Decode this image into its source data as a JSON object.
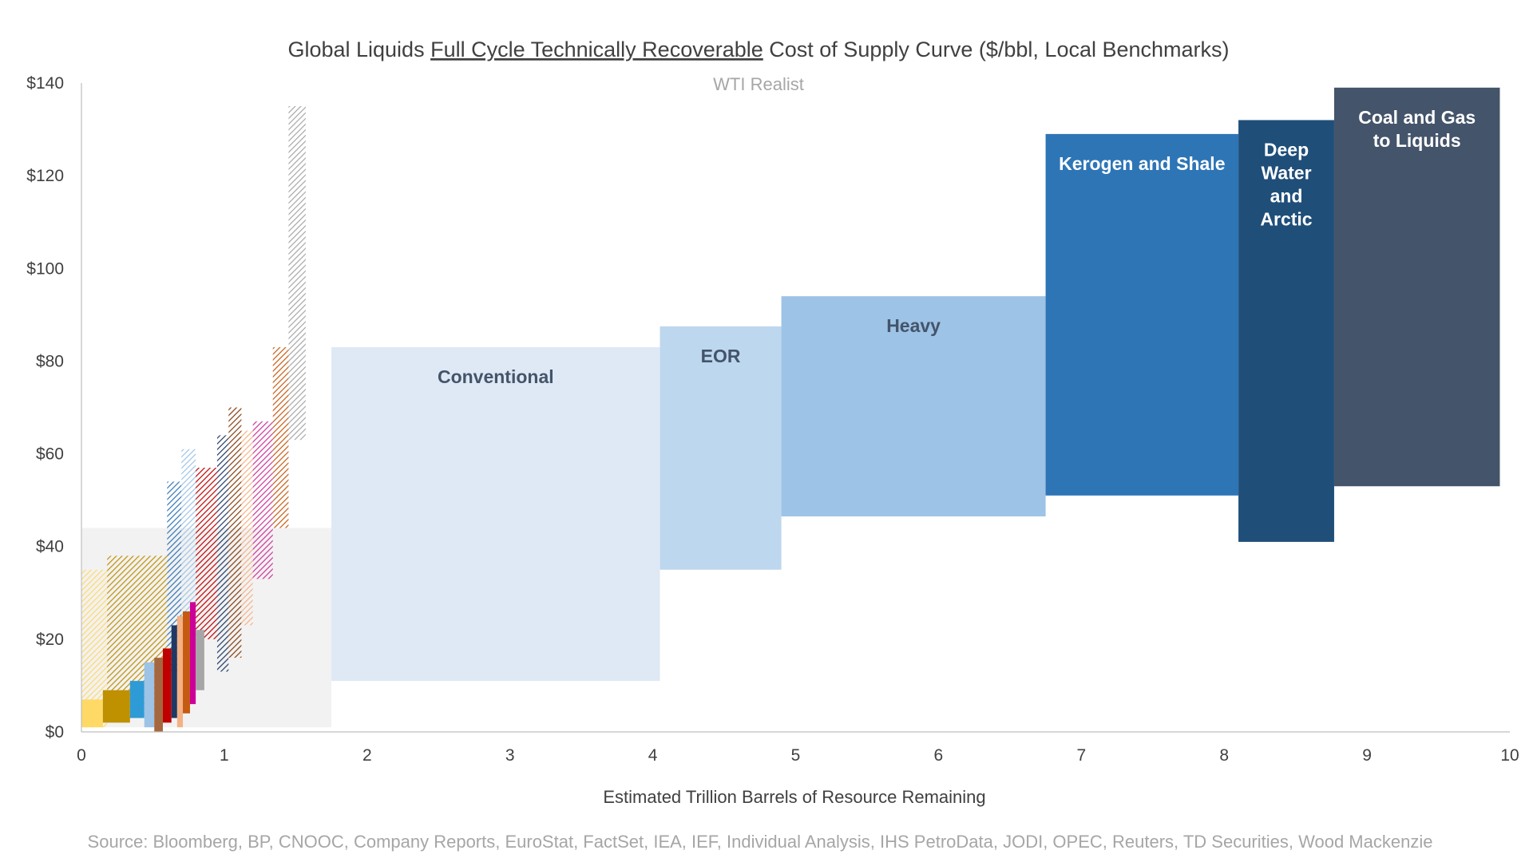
{
  "chart_data": {
    "type": "bar",
    "title_parts": [
      "Global Liquids ",
      "Full Cycle Technically Recoverable",
      " Cost of Supply Curve ($/bbl, Local Benchmarks)"
    ],
    "subtitle": "WTI Realist",
    "xlabel": "Estimated Trillion Barrels of Resource Remaining",
    "ylabel": "",
    "xlim": [
      0,
      10
    ],
    "ylim": [
      0,
      140
    ],
    "x_ticks": [
      "0",
      "1",
      "2",
      "3",
      "4",
      "5",
      "6",
      "7",
      "8",
      "9",
      "10"
    ],
    "y_ticks": [
      "$0",
      "$20",
      "$40",
      "$60",
      "$80",
      "$100",
      "$120",
      "$140"
    ],
    "source": "Source: Bloomberg, BP, CNOOC, Company Reports, EuroStat, FactSet, IEA, IEF, Individual Analysis, IHS PetroData, JODI, OPEC, Reuters, TD Securities, Wood Mackenzie",
    "background_band": {
      "x0": 0,
      "x1": 1.75,
      "low": 1,
      "high": 44,
      "color": "#f2f2f2"
    },
    "segments": [
      {
        "label": "Conventional",
        "x0": 1.75,
        "x1": 4.05,
        "low": 11,
        "high": 83,
        "color": "#dfe9f5",
        "text_color": "#44546a"
      },
      {
        "label": "EOR",
        "x0": 4.05,
        "x1": 4.9,
        "low": 35,
        "high": 87.5,
        "color": "#bdd7ee",
        "text_color": "#44546a"
      },
      {
        "label": "Heavy",
        "x0": 4.9,
        "x1": 6.75,
        "low": 46.5,
        "high": 94,
        "color": "#9dc3e6",
        "text_color": "#44546a"
      },
      {
        "label": "Kerogen and Shale",
        "x0": 6.75,
        "x1": 8.1,
        "low": 51,
        "high": 129,
        "color": "#2e75b6",
        "text_color": "#ffffff"
      },
      {
        "label": "Deep Water and Arctic",
        "x0": 8.1,
        "x1": 8.77,
        "low": 41,
        "high": 132,
        "color": "#1f4e79",
        "text_color": "#ffffff"
      },
      {
        "label": "Coal and Gas to Liquids",
        "x0": 8.77,
        "x1": 9.93,
        "low": 53,
        "high": 139,
        "color": "#44546a",
        "text_color": "#ffffff"
      }
    ],
    "hatched_bars": [
      {
        "x0": 0.0,
        "x1": 0.18,
        "low": 1,
        "high": 35,
        "color": "#ffd966"
      },
      {
        "x0": 0.18,
        "x1": 0.6,
        "low": 3,
        "high": 38,
        "color": "#bf9000"
      },
      {
        "x0": 0.6,
        "x1": 0.7,
        "low": 13,
        "high": 54,
        "color": "#2e75b6"
      },
      {
        "x0": 0.7,
        "x1": 0.8,
        "low": 17,
        "high": 61,
        "color": "#9dc3e6"
      },
      {
        "x0": 0.8,
        "x1": 0.95,
        "low": 20,
        "high": 57,
        "color": "#c00000"
      },
      {
        "x0": 0.95,
        "x1": 1.03,
        "low": 13,
        "high": 64,
        "color": "#1f3864"
      },
      {
        "x0": 1.03,
        "x1": 1.12,
        "low": 16,
        "high": 70,
        "color": "#843c0c"
      },
      {
        "x0": 1.12,
        "x1": 1.2,
        "low": 23,
        "high": 65,
        "color": "#f4b183"
      },
      {
        "x0": 1.2,
        "x1": 1.34,
        "low": 33,
        "high": 67,
        "color": "#cc3399"
      },
      {
        "x0": 1.34,
        "x1": 1.45,
        "low": 44,
        "high": 83,
        "color": "#c55a11"
      },
      {
        "x0": 1.45,
        "x1": 1.57,
        "low": 63,
        "high": 135,
        "color": "#a6a6a6"
      }
    ],
    "solid_bars": [
      {
        "x0": 0.0,
        "x1": 0.15,
        "low": 1,
        "high": 7,
        "color": "#ffd966"
      },
      {
        "x0": 0.15,
        "x1": 0.34,
        "low": 2,
        "high": 9,
        "color": "#bf9000"
      },
      {
        "x0": 0.34,
        "x1": 0.44,
        "low": 3,
        "high": 11,
        "color": "#2e9bd6"
      },
      {
        "x0": 0.44,
        "x1": 0.51,
        "low": 1,
        "high": 15,
        "color": "#9dc3e6"
      },
      {
        "x0": 0.51,
        "x1": 0.57,
        "low": 0,
        "high": 16,
        "color": "#a5673f"
      },
      {
        "x0": 0.57,
        "x1": 0.63,
        "low": 2,
        "high": 18,
        "color": "#c00000"
      },
      {
        "x0": 0.63,
        "x1": 0.67,
        "low": 3,
        "high": 23,
        "color": "#1f3864"
      },
      {
        "x0": 0.67,
        "x1": 0.71,
        "low": 1,
        "high": 25,
        "color": "#f4b183"
      },
      {
        "x0": 0.71,
        "x1": 0.76,
        "low": 4,
        "high": 26,
        "color": "#c55a11"
      },
      {
        "x0": 0.76,
        "x1": 0.8,
        "low": 6,
        "high": 28,
        "color": "#cc0099"
      },
      {
        "x0": 0.8,
        "x1": 0.86,
        "low": 9,
        "high": 22,
        "color": "#a6a6a6"
      }
    ]
  }
}
